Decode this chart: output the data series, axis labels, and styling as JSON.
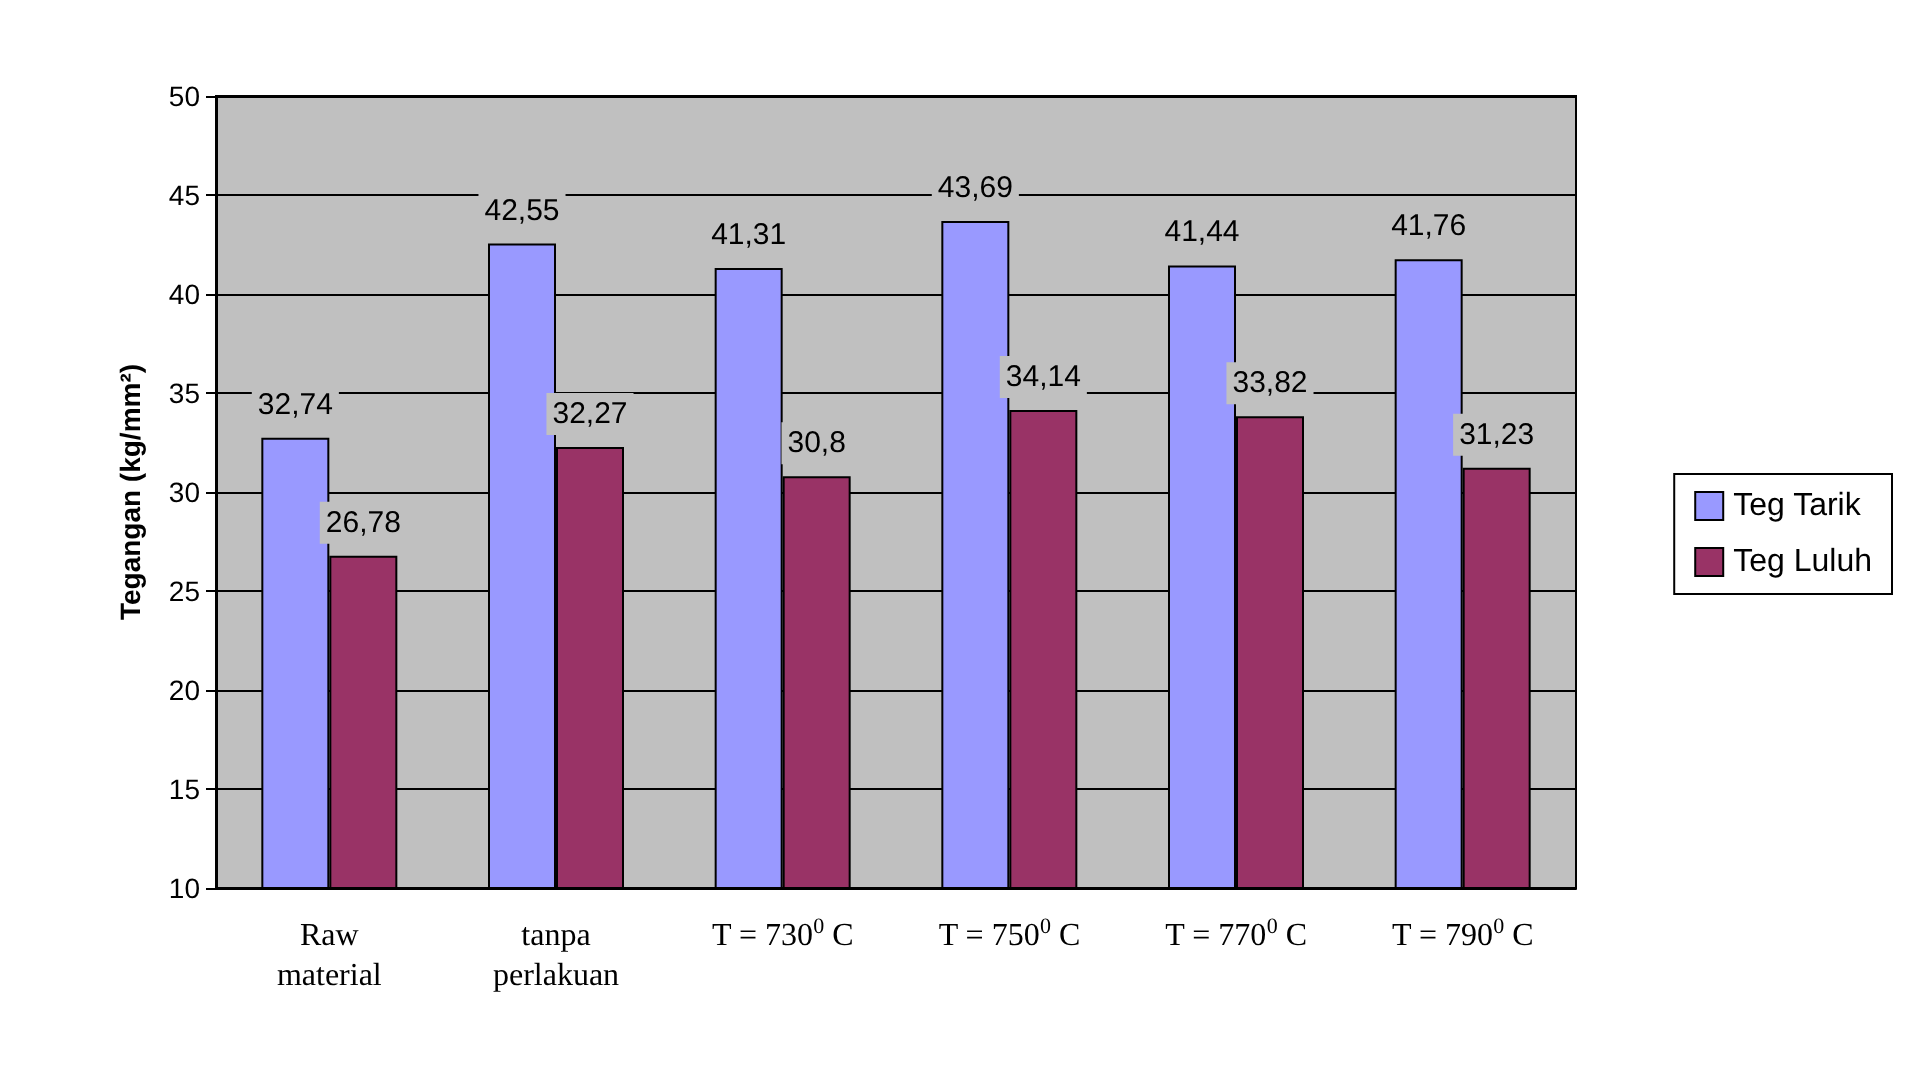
{
  "chart_data": {
    "type": "bar",
    "ylabel": "Tegangan (kg/mm²)",
    "categories": [
      "Raw\nmaterial",
      "tanpa\nperlakuan",
      "T = 730$^{0}$ C",
      "T = 750$^{0}$ C",
      "T = 770$^{0}$ C",
      "T = 790$^{0}$ C"
    ],
    "series": [
      {
        "name": "Teg Tarik",
        "color": "#9999ff",
        "values": [
          32.74,
          42.55,
          41.31,
          43.69,
          41.44,
          41.76
        ],
        "value_labels": [
          "32,74",
          "42,55",
          "41,31",
          "43,69",
          "41,44",
          "41,76"
        ]
      },
      {
        "name": "Teg Luluh",
        "color": "#993366",
        "values": [
          26.78,
          32.27,
          30.8,
          34.14,
          33.82,
          31.23
        ],
        "value_labels": [
          "26,78",
          "32,27",
          "30,8",
          "34,14",
          "33,82",
          "31,23"
        ]
      }
    ],
    "ylim": [
      10,
      50
    ],
    "yticks": [
      10,
      15,
      20,
      25,
      30,
      35,
      40,
      45,
      50
    ],
    "grid": "y",
    "legend": "right"
  }
}
